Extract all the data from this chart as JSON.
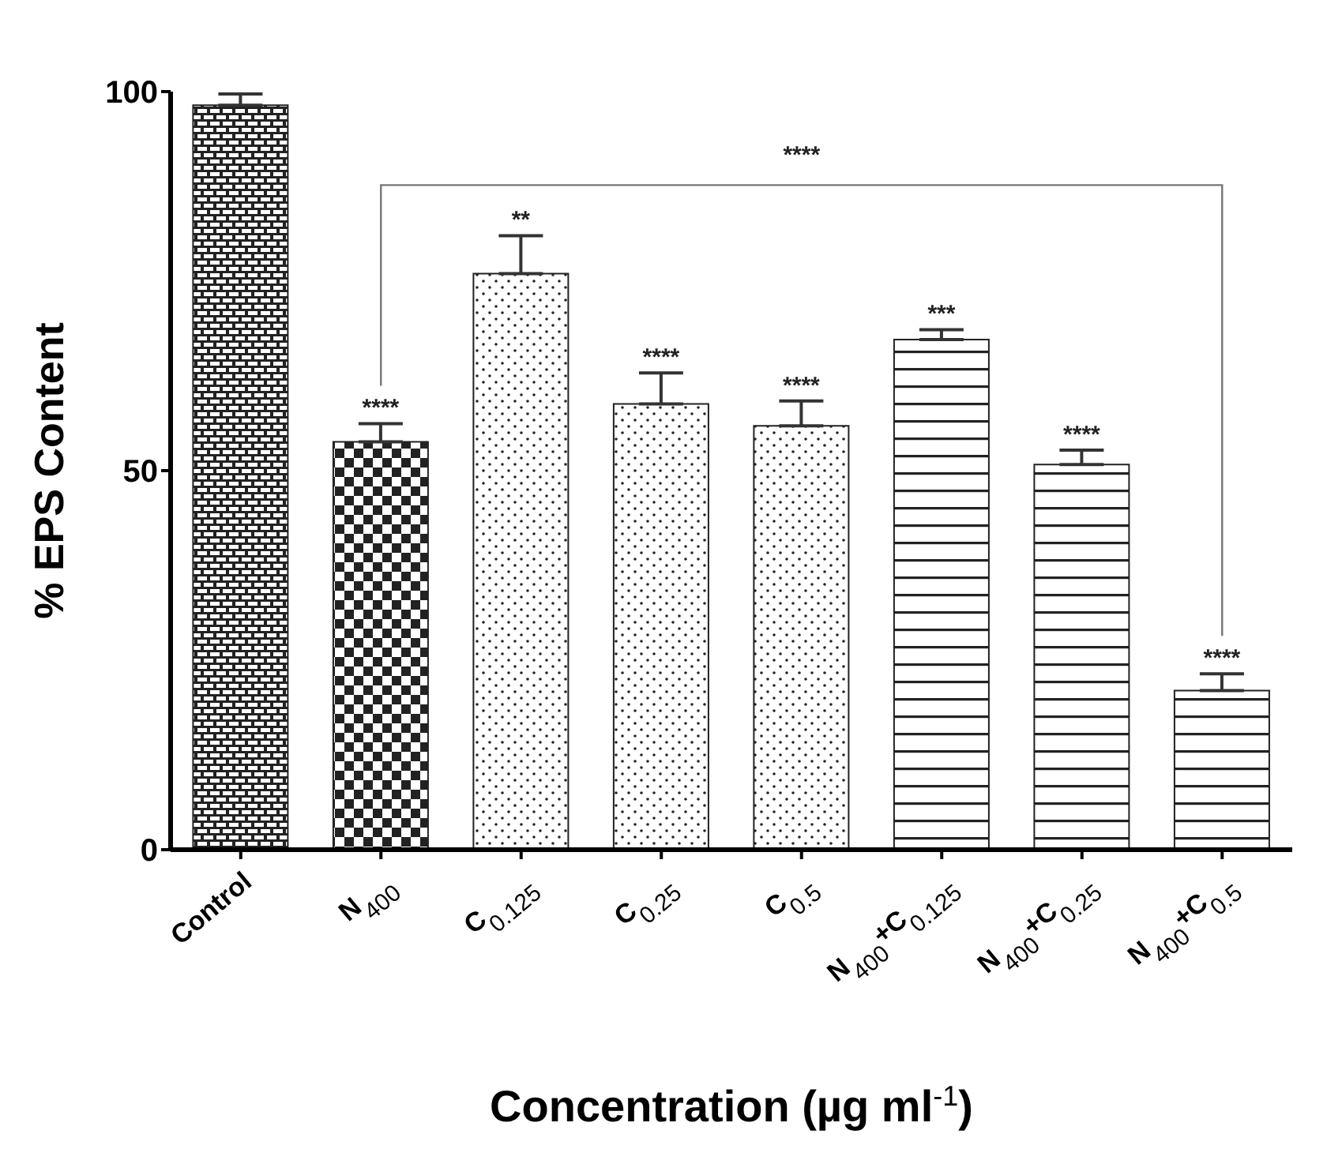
{
  "chart_data": {
    "type": "bar",
    "xlabel": "Concentration (µg ml$^{-1}$)",
    "ylabel": "% EPS Content",
    "categories": [
      "Control",
      "N$_{400}$",
      "C$_{0.125}$",
      "C$_{0.25}$",
      "C$_{0.5}$",
      "N$_{400}$+C$_{0.125}$",
      "N$_{400}$+C$_{0.25}$",
      "N$_{400}$+C$_{0.5}$"
    ],
    "values": [
      98.2,
      53.8,
      76.0,
      58.8,
      55.9,
      67.3,
      50.8,
      21.0
    ],
    "errors": [
      [
        98.2,
        99.7
      ],
      [
        53.8,
        56.2
      ],
      [
        76.0,
        81.0
      ],
      [
        58.8,
        62.9
      ],
      [
        55.9,
        59.2
      ],
      [
        67.3,
        68.6
      ],
      [
        50.8,
        52.7
      ],
      [
        21.0,
        23.2
      ]
    ],
    "value_labels": [
      null,
      "****",
      "**",
      "****",
      "****",
      "***",
      "****",
      "****"
    ],
    "color": "#222222",
    "annotations": [
      "****"
    ],
    "ylim": [
      0,
      100
    ],
    "yticks": [
      0,
      50,
      100
    ]
  }
}
